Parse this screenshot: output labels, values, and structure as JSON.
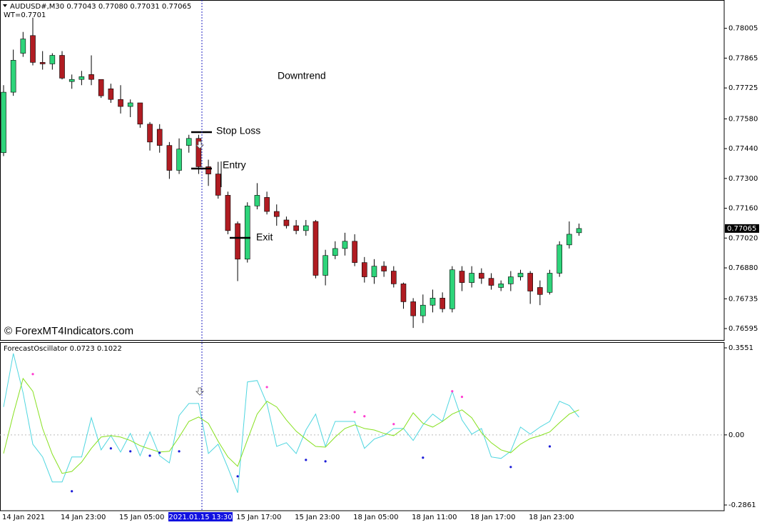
{
  "chart_data": [
    {
      "type": "candlestick",
      "title": "AUDUSD#,M30  0.77043 0.77080 0.77031 0.77065",
      "subtitle": "WT=0.7701",
      "watermark": "© ForexMT4Indicators.com",
      "annotations": [
        "Downtrend",
        "Stop Loss",
        "Entry",
        "Exit"
      ],
      "cursor_label": "2021.01.15 13:30",
      "last_price": 0.77065,
      "up_color": "#2ed47a",
      "down_color": "#b01c22",
      "categories": [
        "14 Jan 2021",
        null,
        null,
        null,
        null,
        null,
        "14 Jan 23:00",
        null,
        null,
        null,
        null,
        null,
        "15 Jan 05:00",
        null,
        null,
        null,
        null,
        null,
        null,
        null,
        null,
        null,
        null,
        null,
        "15 Jan 17:00",
        null,
        null,
        null,
        null,
        null,
        "15 Jan 23:00",
        null,
        null,
        null,
        null,
        null,
        "18 Jan 05:00",
        null,
        null,
        null,
        null,
        null,
        "18 Jan 11:00",
        null,
        null,
        null,
        null,
        null,
        "18 Jan 17:00",
        null,
        null,
        null,
        null,
        null,
        "18 Jan 23:00",
        null,
        null,
        null,
        null,
        null
      ],
      "open": [
        0.77421,
        0.77705,
        0.77888,
        0.77971,
        0.77845,
        0.77838,
        0.77878,
        0.77755,
        0.77765,
        0.77788,
        0.77765,
        0.77721,
        0.77671,
        0.77638,
        0.77655,
        0.77555,
        0.77531,
        0.77455,
        0.77338,
        0.77455,
        0.77488,
        0.77355,
        0.77321,
        0.77221,
        0.77088,
        0.76921,
        0.77171,
        0.77211,
        0.77145,
        0.77105,
        0.77078,
        0.77055,
        0.77098,
        0.76845,
        0.76938,
        0.76971,
        0.77005,
        0.76905,
        0.76838,
        0.76888,
        0.76865,
        0.76805,
        0.76721,
        0.76655,
        0.76705,
        0.76738,
        0.76688,
        0.76865,
        0.76811,
        0.76855,
        0.76831,
        0.76788,
        0.76805,
        0.76838,
        0.76855,
        0.76788,
        0.76765,
        0.76855,
        0.76988,
        0.77045
      ],
      "high": [
        0.77738,
        0.77905,
        0.77988,
        0.78055,
        0.77898,
        0.77888,
        0.77898,
        0.77788,
        0.77805,
        0.77878,
        0.77765,
        0.77745,
        0.77738,
        0.77671,
        0.77655,
        0.77565,
        0.77555,
        0.77471,
        0.77488,
        0.77505,
        0.77505,
        0.77388,
        0.77378,
        0.77238,
        0.77098,
        0.77188,
        0.77278,
        0.77238,
        0.77178,
        0.77121,
        0.77105,
        0.77105,
        0.77105,
        0.76965,
        0.77005,
        0.77045,
        0.77038,
        0.76931,
        0.76921,
        0.76911,
        0.76888,
        0.76811,
        0.76738,
        0.76755,
        0.76778,
        0.76765,
        0.76888,
        0.76888,
        0.76888,
        0.76878,
        0.76855,
        0.76821,
        0.76865,
        0.76871,
        0.76865,
        0.76821,
        0.76871,
        0.77005,
        0.77098,
        0.77088
      ],
      "low": [
        0.77405,
        0.77688,
        0.77871,
        0.77831,
        0.77811,
        0.77811,
        0.77765,
        0.77721,
        0.77738,
        0.77738,
        0.77678,
        0.77655,
        0.77605,
        0.77588,
        0.77538,
        0.77431,
        0.77421,
        0.77298,
        0.77321,
        0.77421,
        0.77321,
        0.77265,
        0.77205,
        0.77038,
        0.76818,
        0.76905,
        0.77155,
        0.77131,
        0.77078,
        0.77065,
        0.77038,
        0.77031,
        0.76831,
        0.76798,
        0.76921,
        0.76938,
        0.76888,
        0.76811,
        0.76805,
        0.76838,
        0.76788,
        0.76688,
        0.76598,
        0.76621,
        0.76671,
        0.76671,
        0.76671,
        0.76771,
        0.76788,
        0.76805,
        0.76778,
        0.76771,
        0.76771,
        0.76821,
        0.76711,
        0.76705,
        0.76755,
        0.76838,
        0.76971,
        0.77031
      ],
      "close": [
        0.77705,
        0.77855,
        0.77955,
        0.77845,
        0.77838,
        0.77878,
        0.77771,
        0.77765,
        0.77778,
        0.77765,
        0.77688,
        0.77671,
        0.77638,
        0.77655,
        0.77555,
        0.77471,
        0.77455,
        0.77338,
        0.77438,
        0.77488,
        0.77355,
        0.77321,
        0.77221,
        0.77055,
        0.76921,
        0.77171,
        0.77221,
        0.77145,
        0.77121,
        0.77078,
        0.77055,
        0.77078,
        0.76845,
        0.76938,
        0.76971,
        0.77005,
        0.76905,
        0.76838,
        0.76888,
        0.76865,
        0.76805,
        0.76721,
        0.76655,
        0.76705,
        0.76738,
        0.76688,
        0.76871,
        0.76811,
        0.76855,
        0.76831,
        0.76798,
        0.76805,
        0.76838,
        0.76855,
        0.76771,
        0.76755,
        0.76855,
        0.76988,
        0.77038,
        0.77065
      ],
      "ylim": [
        0.76538,
        0.78138
      ],
      "yticks": [
        0.78005,
        0.77865,
        0.77725,
        {
          "value": 0.7758,
          "label": "0.77580"
        },
        {
          "value": 0.7744,
          "label": "0.77440"
        },
        {
          "value": 0.773,
          "label": "0.77300"
        },
        {
          "value": 0.7716,
          "label": "0.77160"
        },
        {
          "value": 0.7702,
          "label": "0.77020"
        },
        {
          "value": 0.7688,
          "label": "0.76880"
        },
        0.76735,
        0.76595
      ]
    },
    {
      "type": "line",
      "title": "ForecastOscillator 0.0723 0.1022",
      "zero_line": true,
      "series": [
        {
          "color": "#4fd6e0",
          "values": [
            0.114,
            0.332,
            0.172,
            -0.038,
            -0.09,
            -0.192,
            -0.192,
            -0.09,
            -0.09,
            0.07,
            -0.061,
            -0.003,
            -0.07,
            0.006,
            -0.085,
            0.012,
            -0.085,
            -0.114,
            0.079,
            0.128,
            0.128,
            -0.076,
            -0.038,
            -0.134,
            -0.236,
            0.216,
            0.222,
            0.128,
            -0.047,
            -0.032,
            -0.076,
            0.02,
            0.085,
            -0.047,
            0.055,
            0.055,
            0.055,
            -0.055,
            -0.017,
            -0.003,
            0.026,
            0.026,
            -0.023,
            0.041,
            0.085,
            0.055,
            0.178,
            0.061,
            0.003,
            0.026,
            -0.09,
            -0.096,
            -0.067,
            0.032,
            0.003,
            0.032,
            0.055,
            0.137,
            0.12,
            0.0723
          ]
        },
        {
          "color": "#86e01e",
          "values": [
            -0.076,
            0.085,
            0.23,
            0.178,
            0.026,
            -0.079,
            -0.157,
            -0.149,
            -0.111,
            -0.055,
            -0.009,
            -0.003,
            -0.009,
            -0.023,
            -0.044,
            -0.058,
            -0.07,
            -0.067,
            -0.009,
            0.055,
            0.073,
            0.047,
            -0.026,
            -0.09,
            -0.128,
            -0.02,
            0.085,
            0.137,
            0.114,
            0.061,
            0.015,
            -0.017,
            -0.047,
            -0.05,
            -0.009,
            0.026,
            0.041,
            0.026,
            0.02,
            0.006,
            -0.003,
            0.026,
            0.09,
            0.047,
            0.032,
            0.055,
            0.085,
            0.102,
            0.07,
            0.009,
            -0.032,
            -0.061,
            -0.073,
            -0.038,
            -0.015,
            -0.003,
            0.012,
            0.05,
            0.085,
            0.1022
          ]
        },
        {
          "color": "#ff3fd0",
          "markers": true,
          "values": [
            null,
            null,
            null,
            0.248,
            null,
            null,
            null,
            null,
            null,
            null,
            null,
            null,
            null,
            null,
            null,
            null,
            null,
            null,
            null,
            null,
            null,
            null,
            null,
            null,
            null,
            null,
            null,
            0.195,
            null,
            null,
            null,
            null,
            null,
            null,
            null,
            null,
            0.093,
            0.076,
            null,
            null,
            0.044,
            null,
            null,
            null,
            null,
            null,
            0.178,
            0.155,
            null,
            null,
            null,
            null,
            null,
            null,
            null,
            null,
            null,
            null,
            null,
            null
          ]
        },
        {
          "color": "#1c1cd8",
          "markers": true,
          "values": [
            null,
            null,
            null,
            null,
            null,
            null,
            null,
            -0.23,
            null,
            null,
            null,
            -0.055,
            null,
            -0.067,
            null,
            -0.085,
            -0.073,
            null,
            -0.067,
            null,
            null,
            null,
            null,
            null,
            -0.169,
            null,
            null,
            null,
            null,
            null,
            null,
            -0.102,
            null,
            -0.108,
            null,
            null,
            null,
            null,
            null,
            null,
            null,
            null,
            null,
            -0.093,
            null,
            null,
            null,
            null,
            null,
            null,
            null,
            null,
            -0.131,
            null,
            null,
            null,
            -0.047,
            null,
            null,
            null
          ]
        }
      ],
      "ylim": [
        -0.3094,
        0.3755
      ],
      "yticks": [
        0.3551,
        {
          "value": 0,
          "label": "0.00"
        },
        -0.2861
      ]
    }
  ]
}
